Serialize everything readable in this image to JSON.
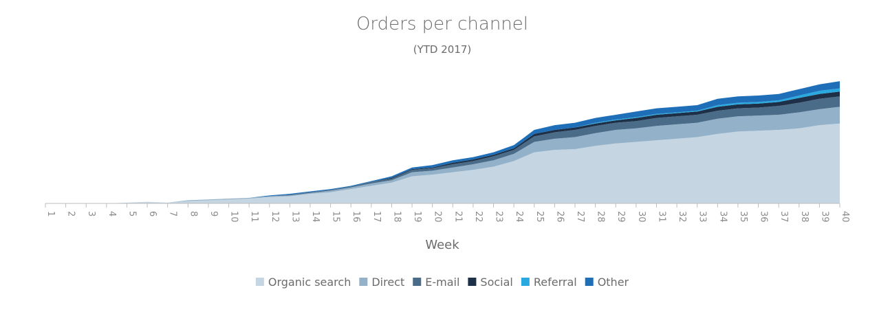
{
  "chart_data": {
    "type": "area",
    "stacked": true,
    "title": "Orders per channel",
    "subtitle": "(YTD 2017)",
    "xlabel": "Week",
    "ylabel": "",
    "x": [
      1,
      2,
      3,
      4,
      5,
      6,
      7,
      8,
      9,
      10,
      11,
      12,
      13,
      14,
      15,
      16,
      17,
      18,
      19,
      20,
      21,
      22,
      23,
      24,
      25,
      26,
      27,
      28,
      29,
      30,
      31,
      32,
      33,
      34,
      35,
      36,
      37,
      38,
      39,
      40
    ],
    "ylim": [
      0,
      160
    ],
    "grid": false,
    "legend_position": "bottom",
    "series": [
      {
        "name": "Organic search",
        "color": "#c5d5e2",
        "values": [
          0,
          0,
          0,
          0,
          1,
          2,
          1,
          3,
          4,
          5,
          6,
          8,
          9,
          12,
          14,
          18,
          22,
          26,
          34,
          36,
          39,
          42,
          46,
          53,
          64,
          67,
          68,
          72,
          75,
          77,
          79,
          81,
          83,
          87,
          90,
          91,
          92,
          94,
          98,
          100
        ]
      },
      {
        "name": "Direct",
        "color": "#93b1c8",
        "values": [
          0,
          0,
          0,
          0,
          0,
          0,
          0,
          1,
          1,
          1,
          1,
          1,
          1,
          1,
          2,
          2,
          3,
          3,
          5,
          5,
          6,
          7,
          8,
          9,
          13,
          14,
          15,
          16,
          17,
          17,
          18,
          18,
          18,
          19,
          19,
          19,
          19,
          20,
          20,
          21
        ]
      },
      {
        "name": "E-mail",
        "color": "#4a6c88",
        "values": [
          0,
          0,
          0,
          0,
          0,
          0,
          0,
          0,
          0,
          0,
          0,
          0,
          1,
          1,
          1,
          1,
          2,
          2,
          3,
          3,
          4,
          4,
          5,
          5,
          7,
          8,
          9,
          9,
          9,
          9,
          10,
          10,
          10,
          10,
          10,
          10,
          11,
          12,
          13,
          13
        ]
      },
      {
        "name": "Social",
        "color": "#1d3047",
        "values": [
          0,
          0,
          0,
          0,
          0,
          0,
          0,
          0,
          0,
          0,
          0,
          0,
          0,
          0,
          0,
          0,
          0,
          1,
          1,
          1,
          2,
          2,
          2,
          2,
          3,
          3,
          3,
          3,
          3,
          4,
          4,
          4,
          4,
          5,
          5,
          5,
          5,
          6,
          6,
          6
        ]
      },
      {
        "name": "Referral",
        "color": "#2aa9e0",
        "values": [
          0,
          0,
          0,
          0,
          0,
          0,
          0,
          0,
          0,
          0,
          0,
          0,
          0,
          0,
          0,
          0,
          0,
          0,
          0,
          0,
          0,
          0,
          0,
          0,
          0,
          0,
          0,
          1,
          1,
          1,
          1,
          1,
          1,
          2,
          2,
          2,
          2,
          3,
          4,
          4
        ]
      },
      {
        "name": "Other",
        "color": "#1f6fb8",
        "values": [
          0,
          0,
          0,
          0,
          0,
          0,
          0,
          0,
          0,
          0,
          0,
          1,
          1,
          1,
          1,
          1,
          1,
          2,
          2,
          3,
          3,
          3,
          3,
          4,
          5,
          6,
          6,
          6,
          6,
          7,
          7,
          7,
          7,
          8,
          8,
          8,
          8,
          8,
          8,
          9
        ]
      }
    ]
  }
}
